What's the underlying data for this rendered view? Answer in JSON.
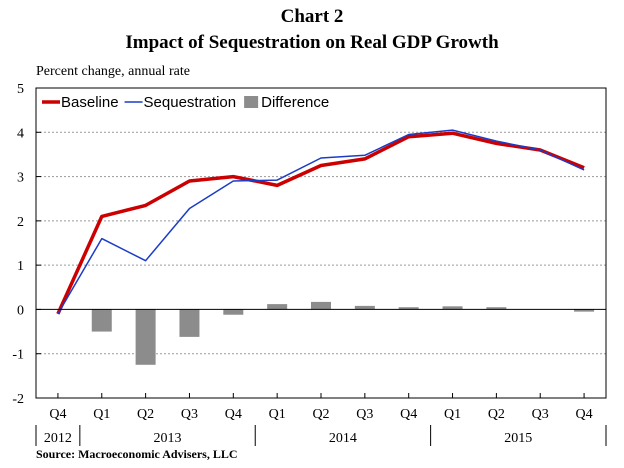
{
  "title_line1": "Chart 2",
  "title_line2": "Impact of Sequestration on Real GDP Growth",
  "ylabel": "Percent change, annual rate",
  "source": "Source: Macroeconomic Advisers, LLC",
  "chart_data": {
    "type": "line",
    "categories": [
      "Q4",
      "Q1",
      "Q2",
      "Q3",
      "Q4",
      "Q1",
      "Q2",
      "Q3",
      "Q4",
      "Q1",
      "Q2",
      "Q3",
      "Q4"
    ],
    "years": [
      {
        "label": "2012",
        "quarters": 1
      },
      {
        "label": "2013",
        "quarters": 4
      },
      {
        "label": "2014",
        "quarters": 4
      },
      {
        "label": "2015",
        "quarters": 4
      }
    ],
    "ylim": [
      -2,
      5
    ],
    "yticks": [
      -2,
      -1,
      0,
      1,
      2,
      3,
      4,
      5
    ],
    "grid": true,
    "legend_position": "top-left",
    "series": [
      {
        "name": "Baseline",
        "type": "line",
        "color": "#cc0000",
        "values": [
          -0.1,
          2.1,
          2.35,
          2.9,
          3.0,
          2.8,
          3.25,
          3.4,
          3.9,
          3.98,
          3.75,
          3.6,
          3.2
        ]
      },
      {
        "name": "Sequestration",
        "type": "line",
        "color": "#1a3cc8",
        "values": [
          -0.1,
          1.6,
          1.1,
          2.28,
          2.9,
          2.92,
          3.42,
          3.48,
          3.95,
          4.05,
          3.8,
          3.6,
          3.15
        ]
      },
      {
        "name": "Difference",
        "type": "bar",
        "color": "#8c8c8c",
        "values": [
          0.0,
          -0.5,
          -1.25,
          -0.62,
          -0.12,
          0.12,
          0.17,
          0.08,
          0.05,
          0.07,
          0.05,
          0.0,
          -0.05
        ]
      }
    ]
  }
}
